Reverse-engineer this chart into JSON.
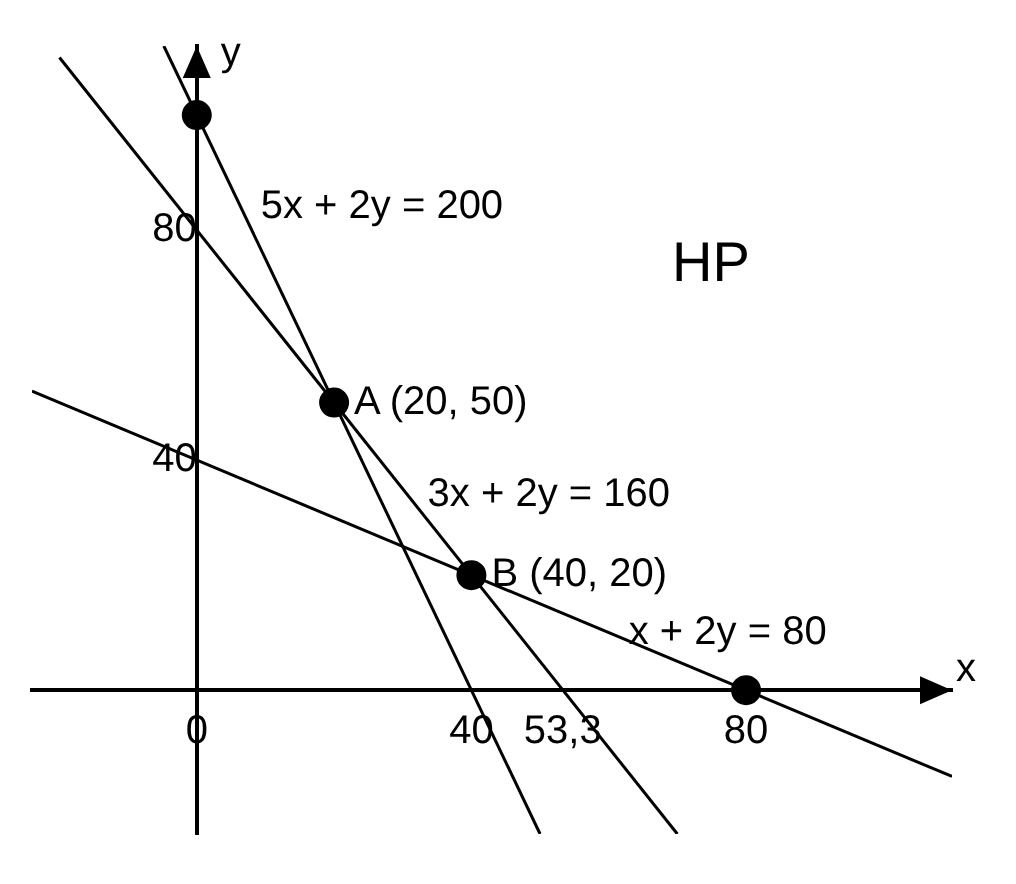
{
  "chart_data": {
    "type": "line",
    "xlabel": "x",
    "ylabel": "y",
    "xlim": [
      -24,
      110
    ],
    "ylim": [
      -25,
      112
    ],
    "xticks": [
      0,
      40,
      {
        "value": 53.3,
        "label": "53,3"
      },
      80
    ],
    "yticks": [
      40,
      80
    ],
    "grid": false,
    "legend": false,
    "line_style": "solid",
    "series": [
      {
        "color": "#000000",
        "x": [
          -4.8,
          50
        ],
        "values": [
          112,
          -25
        ]
      },
      {
        "color": "#000000",
        "x": [
          -20,
          70
        ],
        "values": [
          110,
          -25
        ]
      },
      {
        "color": "#000000",
        "x": [
          -24,
          110
        ],
        "values": [
          52,
          -15
        ]
      },
      {
        "type": "scatter",
        "marker": "circle",
        "color": "#000000",
        "x": [
          0,
          20,
          40,
          80
        ],
        "values": [
          100,
          50,
          20,
          0
        ]
      }
    ],
    "annotations": [
      {
        "text": "5x + 2y = 200",
        "x": 6.4,
        "y": 84
      },
      {
        "text": "A (20, 50)",
        "x": 20,
        "y": 50
      },
      {
        "text": "3x + 2y = 160",
        "x": 30.7,
        "y": 34
      },
      {
        "text": "B (40, 20)",
        "x": 40,
        "y": 20
      },
      {
        "text": "x + 2y = 80",
        "x": 60,
        "y": 10
      },
      "HP"
    ]
  }
}
